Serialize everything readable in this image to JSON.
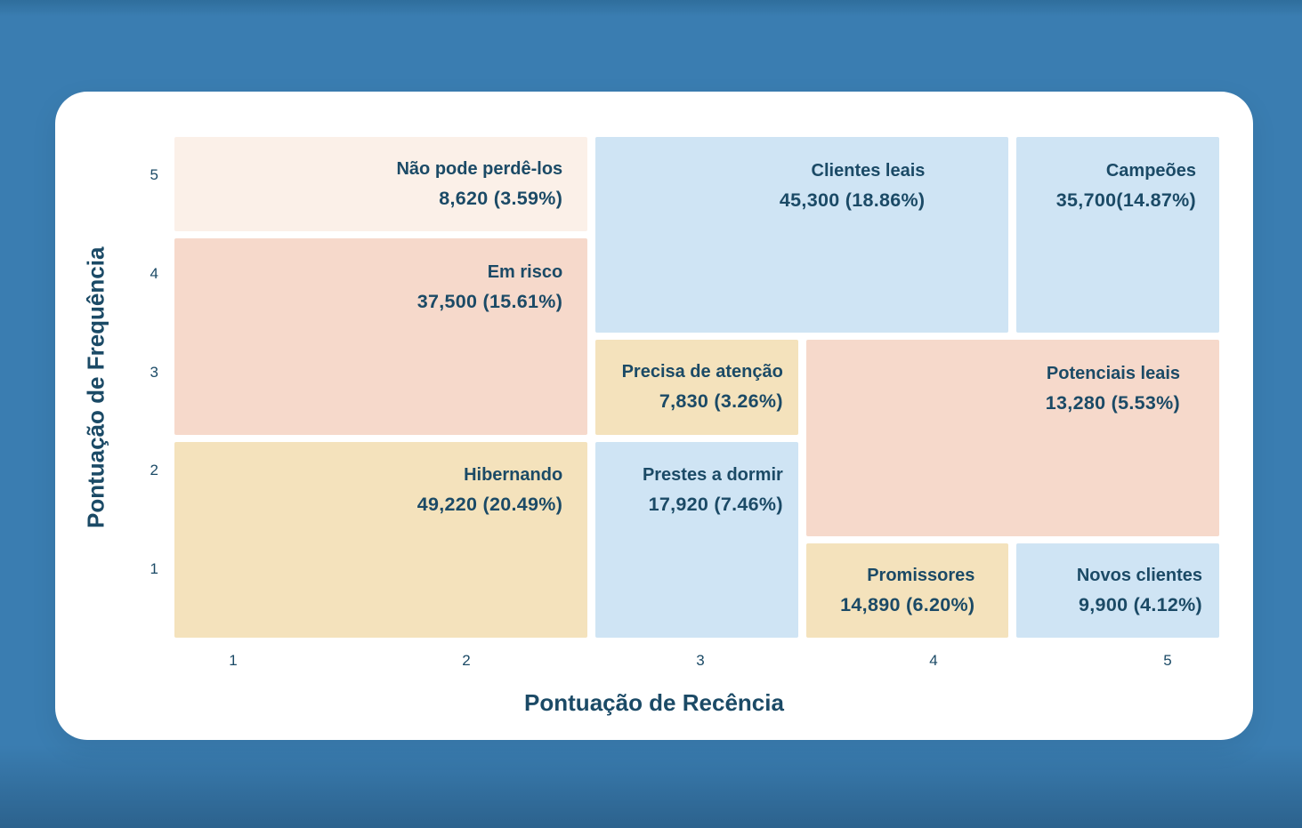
{
  "colors": {
    "background": "#3A7DB1",
    "card": "#FFFFFF",
    "text": "#1B4A66",
    "peach": "#FBF0E8",
    "salmon": "#F6D9CB",
    "sand": "#F4E2BC",
    "blue": "#CFE4F4"
  },
  "chart_data": {
    "type": "heatmap",
    "subtype": "rfm-segmentation-grid",
    "title": "",
    "xlabel": "Pontuação de Recência",
    "ylabel": "Pontuação de Frequência",
    "x_ticks": [
      "1",
      "2",
      "3",
      "4",
      "5"
    ],
    "y_ticks": [
      "5",
      "4",
      "3",
      "2",
      "1"
    ],
    "x_range": [
      1,
      5
    ],
    "y_range": [
      1,
      5
    ],
    "grid": "off",
    "legend": "none",
    "segments": [
      {
        "id": "nao-pode-perde-los",
        "label": "Não pode perdê-los",
        "count": 8620,
        "percent": 3.59,
        "value_text": "8,620 (3.59%)",
        "recency": [
          1,
          2
        ],
        "frequency": [
          5,
          5
        ],
        "color": "peach"
      },
      {
        "id": "clientes-leais",
        "label": "Clientes leais",
        "count": 45300,
        "percent": 18.86,
        "value_text": "45,300 (18.86%)",
        "recency": [
          3,
          4
        ],
        "frequency": [
          4,
          5
        ],
        "color": "blue"
      },
      {
        "id": "campeoes",
        "label": "Campeões",
        "count": 35700,
        "percent": 14.87,
        "value_text": "35,700(14.87%)",
        "recency": [
          5,
          5
        ],
        "frequency": [
          4,
          5
        ],
        "color": "blue"
      },
      {
        "id": "em-risco",
        "label": "Em risco",
        "count": 37500,
        "percent": 15.61,
        "value_text": "37,500 (15.61%)",
        "recency": [
          1,
          2
        ],
        "frequency": [
          3,
          4
        ],
        "color": "salmon"
      },
      {
        "id": "precisa-de-atencao",
        "label": "Precisa de atenção",
        "count": 7830,
        "percent": 3.26,
        "value_text": "7,830 (3.26%)",
        "recency": [
          3,
          3
        ],
        "frequency": [
          3,
          3
        ],
        "color": "sand"
      },
      {
        "id": "potenciais-leais",
        "label": "Potenciais leais",
        "count": 13280,
        "percent": 5.53,
        "value_text": "13,280 (5.53%)",
        "recency": [
          4,
          5
        ],
        "frequency": [
          2,
          3
        ],
        "color": "salmon"
      },
      {
        "id": "hibernando",
        "label": "Hibernando",
        "count": 49220,
        "percent": 20.49,
        "value_text": "49,220 (20.49%)",
        "recency": [
          1,
          2
        ],
        "frequency": [
          1,
          2
        ],
        "color": "sand"
      },
      {
        "id": "prestes-a-dormir",
        "label": "Prestes a dormir",
        "count": 17920,
        "percent": 7.46,
        "value_text": "17,920 (7.46%)",
        "recency": [
          3,
          3
        ],
        "frequency": [
          1,
          2
        ],
        "color": "blue"
      },
      {
        "id": "promissores",
        "label": "Promissores",
        "count": 14890,
        "percent": 6.2,
        "value_text": "14,890 (6.20%)",
        "recency": [
          4,
          4
        ],
        "frequency": [
          1,
          1
        ],
        "color": "sand"
      },
      {
        "id": "novos-clientes",
        "label": "Novos clientes",
        "count": 9900,
        "percent": 4.12,
        "value_text": "9,900 (4.12%)",
        "recency": [
          5,
          5
        ],
        "frequency": [
          1,
          1
        ],
        "color": "blue"
      }
    ]
  }
}
